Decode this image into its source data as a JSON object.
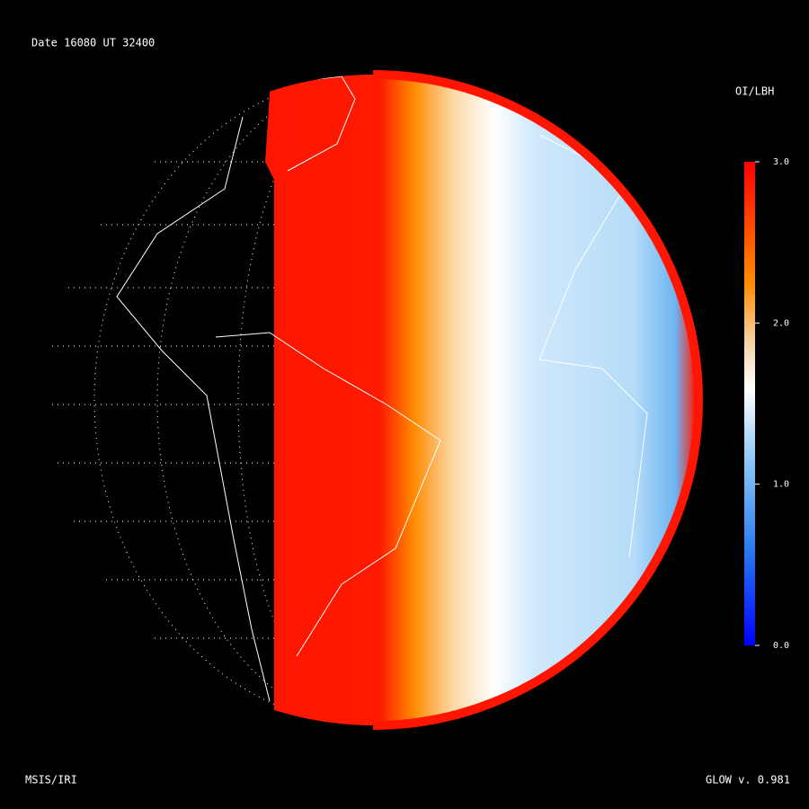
{
  "header": {
    "title": "Date 16080  UT 32400"
  },
  "colorbar": {
    "title": "OI/LBH",
    "lim": [
      0,
      3
    ],
    "ticks": [
      {
        "value": 3,
        "label": "3.0"
      },
      {
        "value": 2,
        "label": "2.0"
      },
      {
        "value": 1,
        "label": "1.0"
      },
      {
        "value": 0,
        "label": "0.0"
      }
    ]
  },
  "footer": {
    "left": "MSIS/IRI",
    "right": "GLOW v. 0.981"
  }
}
